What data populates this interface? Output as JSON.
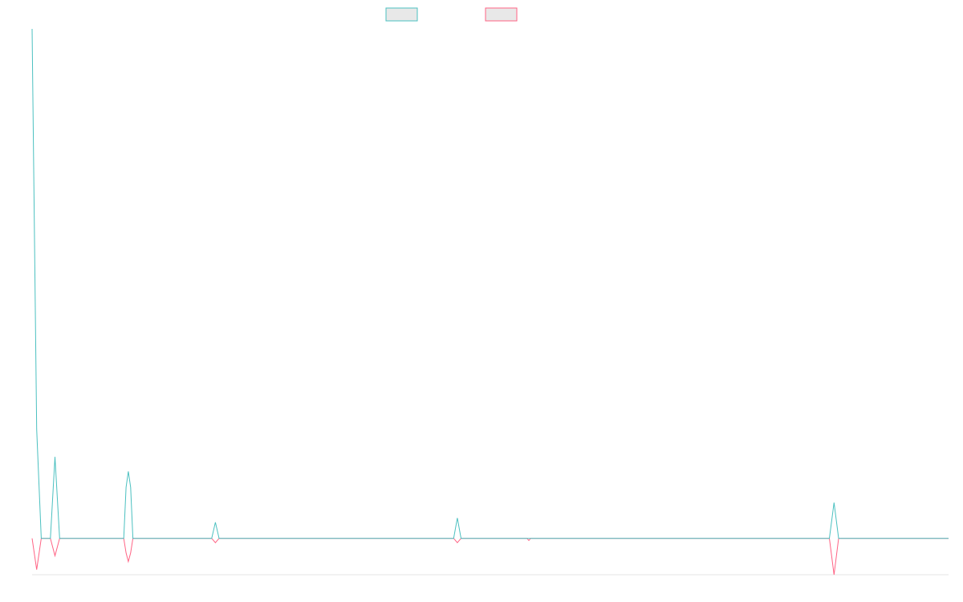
{
  "chart_data": {
    "type": "line",
    "title": "",
    "xlabel": "",
    "ylabel": "",
    "grid": false,
    "legend_position": "top-center",
    "x": [
      0,
      0.5,
      1,
      2,
      2.5,
      3,
      3.5,
      4,
      10,
      10.25,
      10.5,
      10.75,
      11,
      19.6,
      20,
      20.4,
      46,
      46.4,
      46.8,
      54,
      54.2,
      54.4,
      87,
      87.5,
      88,
      100
    ],
    "ylim": [
      -5,
      70
    ],
    "series": [
      {
        "color": "#4bc0c0",
        "values": [
          70,
          15,
          0,
          0,
          11.2,
          0,
          0,
          0,
          0,
          7,
          9.2,
          7,
          0,
          0,
          2.2,
          0,
          0,
          2.8,
          0,
          0,
          0,
          0,
          0,
          4.9,
          0,
          0
        ]
      },
      {
        "color": "#ff6384",
        "values": [
          0,
          -4.3,
          0,
          0,
          -2.4,
          0,
          0,
          0,
          0,
          -2,
          -3.2,
          -2,
          0,
          0,
          -0.6,
          0,
          0,
          -0.6,
          0,
          0,
          -0.3,
          0,
          0,
          -5,
          0,
          0
        ]
      }
    ]
  }
}
